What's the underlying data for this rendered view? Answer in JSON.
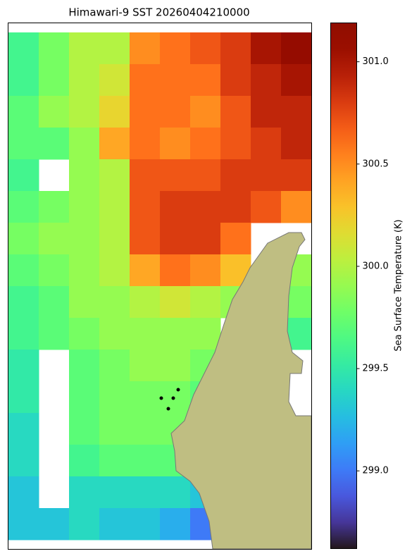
{
  "chart_data": {
    "type": "heatmap",
    "title": "Himawari-9 SST 20260404210000",
    "colorbar_label": "Sea Surface Temperature (K)",
    "colormap": "turbo",
    "clim": [
      298.62,
      301.19
    ],
    "cticks": [
      {
        "value": 299,
        "label": "299.0"
      },
      {
        "value": 299.5,
        "label": "299.5"
      },
      {
        "value": 300,
        "label": "300.0"
      },
      {
        "value": 300.5,
        "label": "300.5"
      },
      {
        "value": 301,
        "label": "301.0"
      }
    ],
    "values": [
      [
        299.6,
        299.8,
        300.0,
        300.0,
        300.5,
        300.6,
        300.7,
        300.8,
        301.0,
        301.1
      ],
      [
        299.6,
        299.8,
        300.0,
        300.1,
        300.6,
        300.6,
        300.6,
        300.8,
        300.9,
        301.0
      ],
      [
        299.7,
        299.9,
        300.0,
        300.2,
        300.6,
        300.6,
        300.5,
        300.7,
        300.9,
        300.9
      ],
      [
        299.7,
        299.7,
        299.9,
        300.4,
        300.6,
        300.5,
        300.6,
        300.7,
        300.8,
        300.9
      ],
      [
        299.6,
        null,
        299.9,
        300.0,
        300.7,
        300.7,
        300.7,
        300.8,
        300.8,
        300.8
      ],
      [
        299.7,
        299.8,
        299.9,
        300.0,
        300.7,
        300.8,
        300.8,
        300.8,
        300.7,
        300.5
      ],
      [
        299.8,
        299.9,
        299.9,
        300.0,
        300.7,
        300.8,
        300.8,
        300.6,
        null,
        null
      ],
      [
        299.7,
        299.8,
        299.9,
        300.0,
        300.4,
        300.6,
        300.5,
        300.3,
        null,
        299.9
      ],
      [
        299.6,
        299.7,
        299.9,
        299.9,
        300.0,
        300.1,
        300.0,
        299.9,
        null,
        299.8
      ],
      [
        299.6,
        299.7,
        299.8,
        299.9,
        299.9,
        299.9,
        299.9,
        null,
        null,
        299.6
      ],
      [
        299.5,
        null,
        299.7,
        299.8,
        299.9,
        299.9,
        299.8,
        null,
        null,
        null
      ],
      [
        299.5,
        null,
        299.7,
        299.8,
        299.8,
        299.8,
        299.7,
        null,
        null,
        null
      ],
      [
        299.4,
        null,
        299.7,
        299.8,
        299.8,
        299.8,
        null,
        null,
        null,
        null
      ],
      [
        299.4,
        null,
        299.6,
        299.7,
        299.7,
        299.7,
        299.5,
        null,
        null,
        null
      ],
      [
        299.3,
        null,
        299.4,
        299.4,
        299.4,
        299.4,
        299.3,
        null,
        null,
        null
      ],
      [
        299.3,
        299.3,
        299.4,
        299.3,
        299.3,
        299.2,
        299.0,
        null,
        null,
        null
      ]
    ]
  }
}
